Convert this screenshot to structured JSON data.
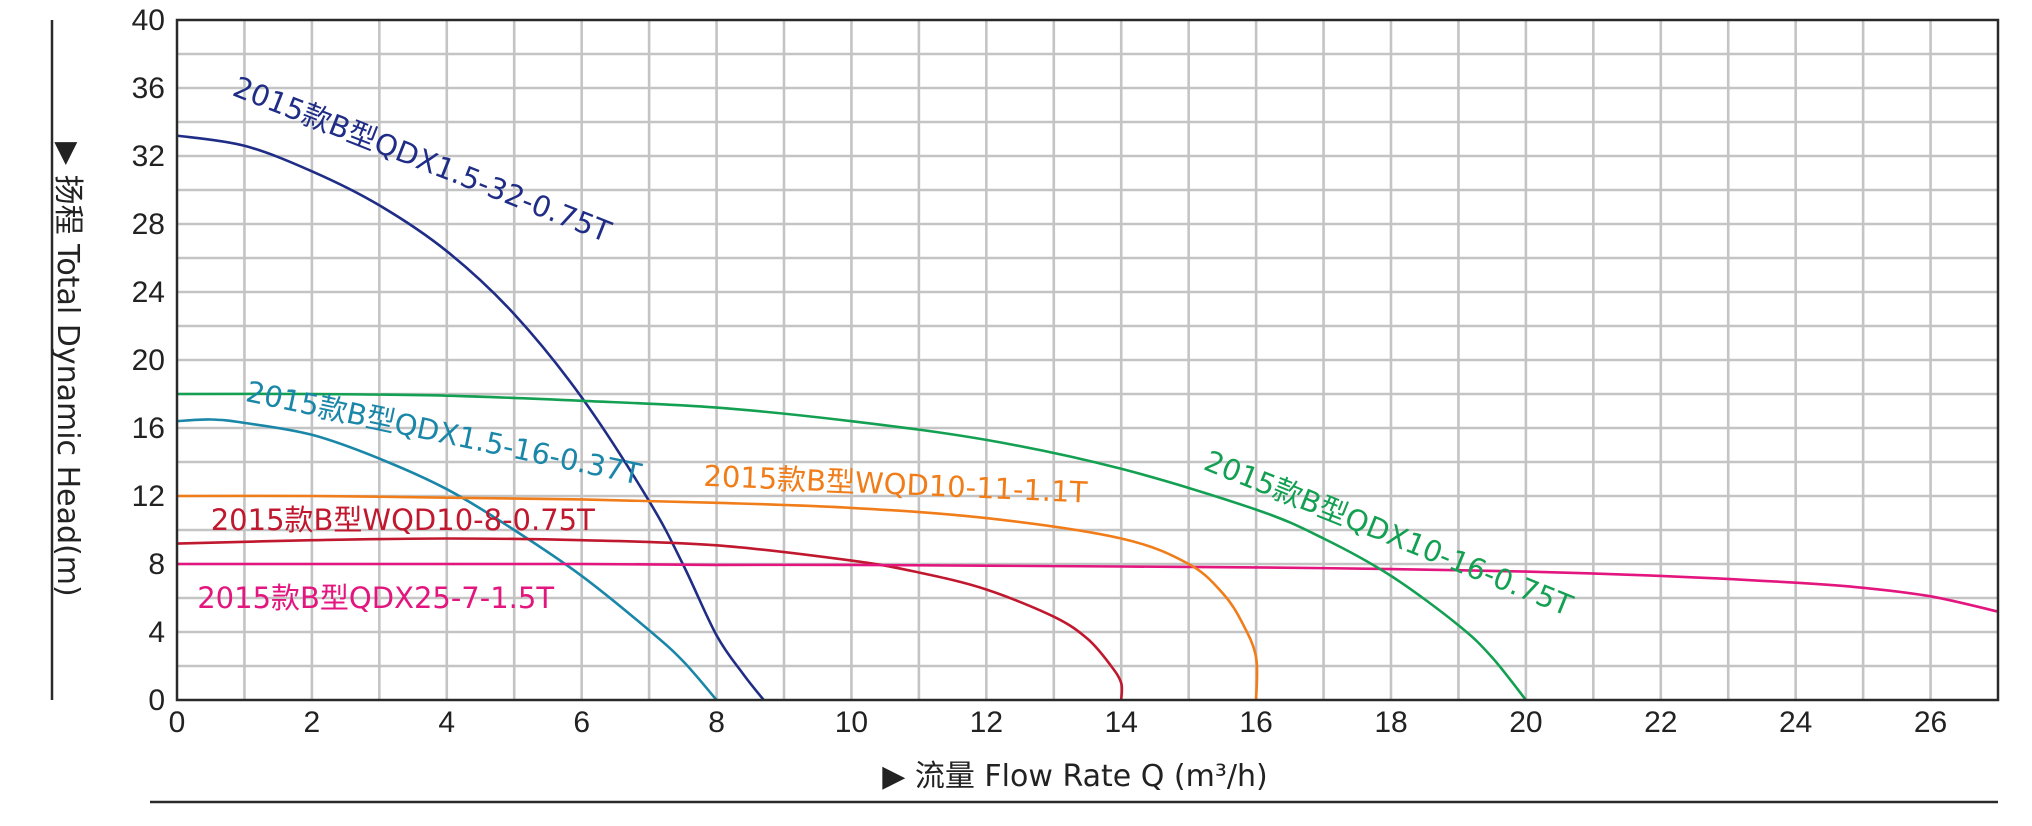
{
  "chart_data": {
    "type": "line",
    "title": "",
    "xlabel": "▶ 流量 Flow Rate Q (m³/h)",
    "ylabel": "▶ 扬程 Total Dynamic Head(m)",
    "xlim": [
      0,
      27
    ],
    "ylim": [
      0,
      40
    ],
    "x_ticks": [
      0,
      2,
      4,
      6,
      8,
      10,
      12,
      14,
      16,
      18,
      20,
      22,
      24,
      26
    ],
    "y_ticks": [
      0,
      4,
      8,
      12,
      16,
      20,
      24,
      28,
      32,
      36,
      40
    ],
    "grid": true,
    "series": [
      {
        "name": "2015款B型QDX1.5-32-0.75T",
        "color": "#1f2d86",
        "x": [
          0,
          1,
          2,
          3,
          4,
          5,
          6,
          7,
          7.5,
          8,
          8.4,
          8.7
        ],
        "y": [
          33.2,
          32.6,
          31.1,
          29.1,
          26.4,
          22.7,
          17.8,
          11.7,
          8.0,
          3.8,
          1.5,
          0
        ]
      },
      {
        "name": "2015款B型QDX1.5-16-0.37T",
        "color": "#1a86a8",
        "x": [
          0,
          0.5,
          1,
          2,
          3,
          4,
          5,
          6,
          7,
          7.5,
          8
        ],
        "y": [
          16.4,
          16.5,
          16.3,
          15.6,
          14.2,
          12.4,
          10.0,
          7.3,
          4.1,
          2.3,
          0
        ]
      },
      {
        "name": "2015款B型WQD10-8-0.75T",
        "color": "#c0182e",
        "x": [
          0,
          2,
          4,
          6,
          8,
          10,
          11,
          12,
          13,
          13.5,
          13.85,
          14,
          14
        ],
        "y": [
          9.2,
          9.4,
          9.5,
          9.4,
          9.1,
          8.2,
          7.5,
          6.5,
          4.9,
          3.6,
          2.0,
          1.0,
          0
        ]
      },
      {
        "name": "2015款B型QDX25-7-1.5T",
        "color": "#e3157e",
        "x": [
          0,
          2,
          4,
          6,
          8,
          10,
          12,
          14,
          16,
          18,
          20,
          22,
          24,
          25,
          26,
          27
        ],
        "y": [
          8.0,
          8.0,
          8.0,
          8.0,
          7.95,
          7.95,
          7.9,
          7.85,
          7.8,
          7.7,
          7.55,
          7.3,
          6.9,
          6.6,
          6.1,
          5.2
        ]
      },
      {
        "name": "2015款B型WQD10-11-1.1T",
        "color": "#f07d1a",
        "x": [
          0,
          2,
          4,
          6,
          8,
          10,
          12,
          14,
          15,
          15.5,
          15.8,
          16,
          16
        ],
        "y": [
          12.0,
          12.0,
          11.9,
          11.8,
          11.6,
          11.3,
          10.7,
          9.5,
          8.0,
          6.3,
          4.5,
          2.5,
          0
        ]
      },
      {
        "name": "2015款B型QDX10-16-0.75T",
        "color": "#14a052",
        "x": [
          0,
          2,
          4,
          6,
          8,
          10,
          12,
          14,
          16,
          17,
          18,
          19,
          19.5,
          20
        ],
        "y": [
          18.0,
          18.0,
          17.9,
          17.6,
          17.2,
          16.4,
          15.3,
          13.6,
          11.2,
          9.5,
          7.3,
          4.4,
          2.5,
          0
        ]
      }
    ]
  }
}
